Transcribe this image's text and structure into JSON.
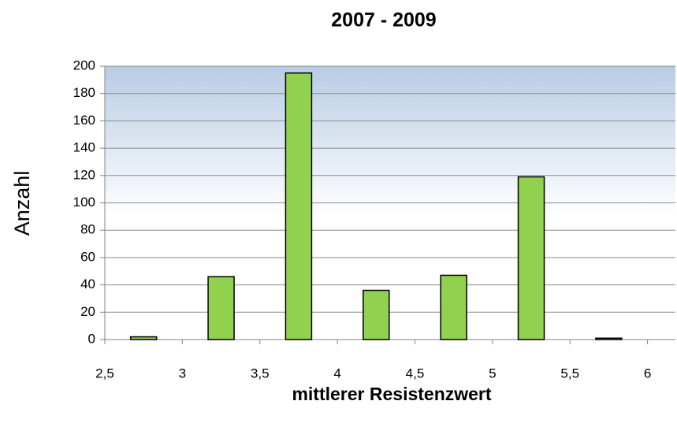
{
  "chart_data": {
    "type": "bar",
    "title": "2007 - 2009",
    "x_label": "mittlerer Resistenzwert",
    "y_label": "Anzahl",
    "x": [
      2.75,
      3.25,
      3.75,
      4.25,
      4.75,
      5.25,
      5.75
    ],
    "values": [
      2,
      46,
      195,
      36,
      47,
      119,
      1
    ],
    "color": "#92d050",
    "xlim": [
      2.5,
      6.18
    ],
    "xticks": [
      {
        "value": 2.5,
        "label": "2,5"
      },
      3,
      {
        "value": 3.5,
        "label": "3,5"
      },
      4,
      {
        "value": 4.5,
        "label": "4,5"
      },
      5,
      {
        "value": 5.5,
        "label": "5,5"
      },
      6
    ],
    "ylim": [
      0,
      200
    ],
    "yticks": [
      0,
      20,
      40,
      60,
      80,
      100,
      120,
      140,
      160,
      180,
      200
    ],
    "grid": true
  }
}
